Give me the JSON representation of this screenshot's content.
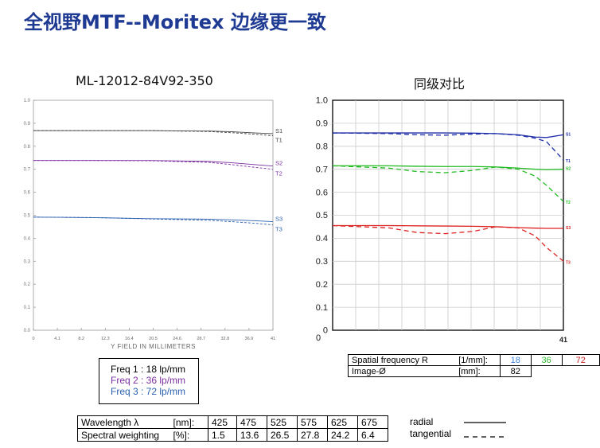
{
  "page": {
    "title": "全视野MTF--Moritex 边缘更一致"
  },
  "left_chart_title": "ML-12012-84V92-350",
  "right_chart_title": "同级对比",
  "left_legend": [
    {
      "label": "Freq 1 : 18 lp/mm",
      "color": "#000000"
    },
    {
      "label": "Freq 2 : 36 lp/mm",
      "color": "#7b2fa0"
    },
    {
      "label": "Freq 3 : 72 lp/mm",
      "color": "#2a5fb0"
    }
  ],
  "freq_table": {
    "row1_label": "Spatial frequency R",
    "row1_unit": "[1/mm]:",
    "row1_values": [
      "18",
      "36",
      "72"
    ],
    "row1_colors": [
      "#3a7fd8",
      "#33bb33",
      "#cc2222"
    ],
    "row2_label": "Image-Ø",
    "row2_unit": "[mm]:",
    "row2_value": "82"
  },
  "spectral_table": {
    "row1_label": "Wavelength λ",
    "row1_unit": "[nm]:",
    "row1_values": [
      "425",
      "475",
      "525",
      "575",
      "625",
      "675"
    ],
    "row2_label": "Spectral weighting",
    "row2_unit": "[%]:",
    "row2_values": [
      "1.5",
      "13.6",
      "26.5",
      "27.8",
      "24.2",
      "6.4"
    ]
  },
  "line_legend": {
    "radial": "radial",
    "tangential": "tangential"
  },
  "chart_data": [
    {
      "type": "line",
      "title": "ML-12012-84V92-350",
      "xlabel": "Y FIELD IN MILLIMETERS",
      "ylabel": "",
      "xlim": [
        0,
        41
      ],
      "ylim": [
        0,
        1.0
      ],
      "x_ticks": [
        "0",
        "4.1",
        "8.2",
        "12.3",
        "16.4",
        "20.5",
        "24.6",
        "28.7",
        "32.8",
        "36.9",
        "41"
      ],
      "y_ticks": [
        "0.0",
        "0.1",
        "0.2",
        "0.3",
        "0.4",
        "0.5",
        "0.6",
        "0.7",
        "0.8",
        "0.9",
        "1.0"
      ],
      "grid": false,
      "x": [
        0,
        10,
        20,
        30,
        34,
        38,
        41
      ],
      "series": [
        {
          "name": "S1",
          "style": "solid",
          "color": "#444444",
          "values": [
            0.868,
            0.868,
            0.868,
            0.866,
            0.863,
            0.858,
            0.855
          ]
        },
        {
          "name": "T1",
          "style": "dashed",
          "color": "#444444",
          "values": [
            0.868,
            0.868,
            0.868,
            0.864,
            0.859,
            0.852,
            0.846
          ]
        },
        {
          "name": "S2",
          "style": "solid",
          "color": "#7b2fa0",
          "values": [
            0.738,
            0.738,
            0.738,
            0.734,
            0.728,
            0.72,
            0.714
          ]
        },
        {
          "name": "T2",
          "style": "dashed",
          "color": "#7b2fa0",
          "values": [
            0.738,
            0.738,
            0.737,
            0.73,
            0.72,
            0.708,
            0.7
          ]
        },
        {
          "name": "S3",
          "style": "solid",
          "color": "#2a5fb0",
          "values": [
            0.492,
            0.49,
            0.485,
            0.483,
            0.48,
            0.476,
            0.472
          ]
        },
        {
          "name": "T3",
          "style": "dashed",
          "color": "#2a5fb0",
          "values": [
            0.492,
            0.49,
            0.484,
            0.478,
            0.472,
            0.465,
            0.458
          ]
        }
      ]
    },
    {
      "type": "line",
      "title": "同级对比",
      "xlabel": "",
      "ylabel": "",
      "xlim": [
        0,
        41
      ],
      "ylim": [
        0,
        1.0
      ],
      "x_ticks": [
        "0",
        "41"
      ],
      "y_ticks": [
        "0",
        "0.1",
        "0.2",
        "0.3",
        "0.4",
        "0.5",
        "0.6",
        "0.7",
        "0.8",
        "0.9",
        "1.0"
      ],
      "grid": true,
      "x": [
        0,
        10,
        15,
        20,
        25,
        29,
        33,
        36,
        38,
        41
      ],
      "series": [
        {
          "name": "S1",
          "style": "solid",
          "color": "#1f2fa8",
          "values": [
            0.858,
            0.858,
            0.858,
            0.858,
            0.857,
            0.855,
            0.85,
            0.84,
            0.838,
            0.85
          ]
        },
        {
          "name": "T1",
          "style": "dashed",
          "color": "#1f2fa8",
          "values": [
            0.858,
            0.855,
            0.85,
            0.848,
            0.853,
            0.855,
            0.848,
            0.835,
            0.82,
            0.74
          ]
        },
        {
          "name": "S2",
          "style": "solid",
          "color": "#22bb22",
          "values": [
            0.715,
            0.715,
            0.713,
            0.712,
            0.712,
            0.71,
            0.705,
            0.7,
            0.698,
            0.7
          ]
        },
        {
          "name": "T2",
          "style": "dashed",
          "color": "#22bb22",
          "values": [
            0.715,
            0.705,
            0.69,
            0.685,
            0.695,
            0.71,
            0.7,
            0.67,
            0.63,
            0.56
          ]
        },
        {
          "name": "S3",
          "style": "solid",
          "color": "#dd2222",
          "values": [
            0.455,
            0.455,
            0.454,
            0.453,
            0.452,
            0.45,
            0.446,
            0.444,
            0.443,
            0.443
          ]
        },
        {
          "name": "T3",
          "style": "dashed",
          "color": "#dd2222",
          "values": [
            0.455,
            0.445,
            0.425,
            0.42,
            0.43,
            0.45,
            0.445,
            0.41,
            0.36,
            0.3
          ]
        }
      ]
    }
  ]
}
